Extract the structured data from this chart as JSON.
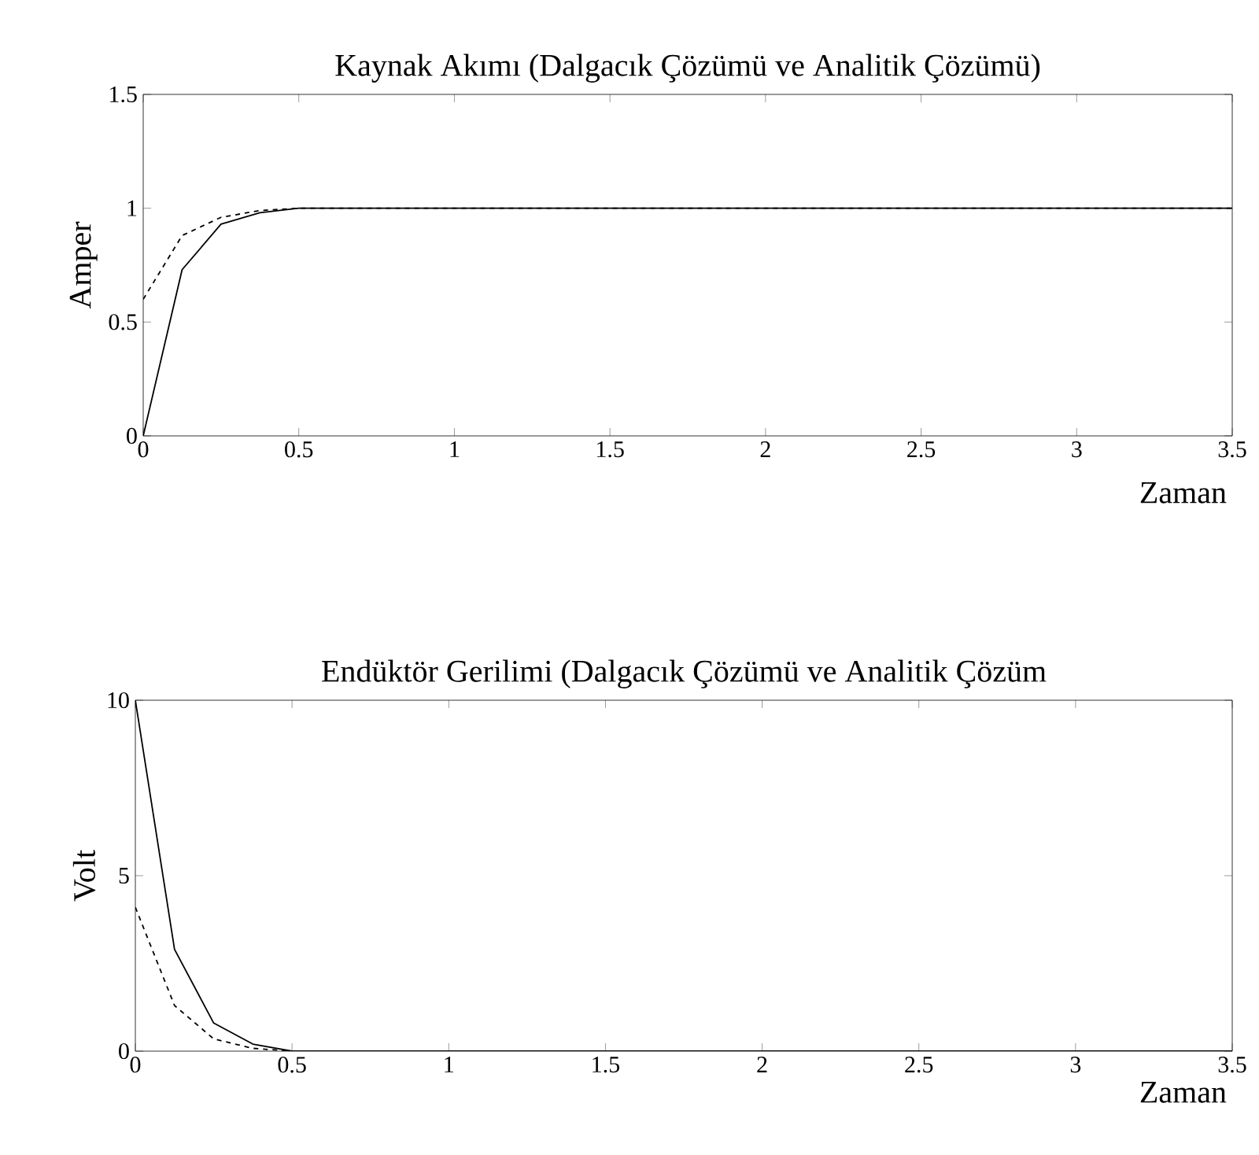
{
  "chart_data": [
    {
      "type": "line",
      "title": "Kaynak Akımı (Dalgacık Çözümü ve Analitik Çözümü)",
      "xlabel": "Zaman",
      "ylabel": "Amper",
      "xlim": [
        0,
        3.5
      ],
      "ylim": [
        0,
        1.5
      ],
      "xticks": [
        0,
        0.5,
        1,
        1.5,
        2,
        2.5,
        3,
        3.5
      ],
      "yticks": [
        0,
        0.5,
        1,
        1.5
      ],
      "series": [
        {
          "color": "#000000",
          "line_style": "solid",
          "x": [
            0,
            0.125,
            0.25,
            0.375,
            0.5,
            3.5
          ],
          "values": [
            0,
            0.73,
            0.93,
            0.98,
            1,
            1
          ]
        },
        {
          "color": "#000000",
          "line_style": "dashed",
          "x": [
            0,
            0.125,
            0.25,
            0.375,
            0.5,
            3.5
          ],
          "values": [
            0.6,
            0.88,
            0.96,
            0.99,
            1,
            1
          ]
        }
      ]
    },
    {
      "type": "line",
      "title": "Endüktör Gerilimi (Dalgacık Çözümü ve Analitik Çözüm",
      "xlabel": "Zaman",
      "ylabel": "Volt",
      "xlim": [
        0,
        3.5
      ],
      "ylim": [
        0,
        10
      ],
      "xticks": [
        0,
        0.5,
        1,
        1.5,
        2,
        2.5,
        3,
        3.5
      ],
      "yticks": [
        0,
        5,
        10
      ],
      "series": [
        {
          "color": "#000000",
          "line_style": "solid",
          "x": [
            0,
            0.125,
            0.25,
            0.375,
            0.5,
            3.5
          ],
          "values": [
            10,
            2.9,
            0.8,
            0.2,
            0,
            0
          ]
        },
        {
          "color": "#000000",
          "line_style": "dashed",
          "x": [
            0,
            0.125,
            0.25,
            0.375,
            0.5,
            3.5
          ],
          "values": [
            4.1,
            1.3,
            0.35,
            0.08,
            0,
            0
          ]
        }
      ]
    }
  ]
}
